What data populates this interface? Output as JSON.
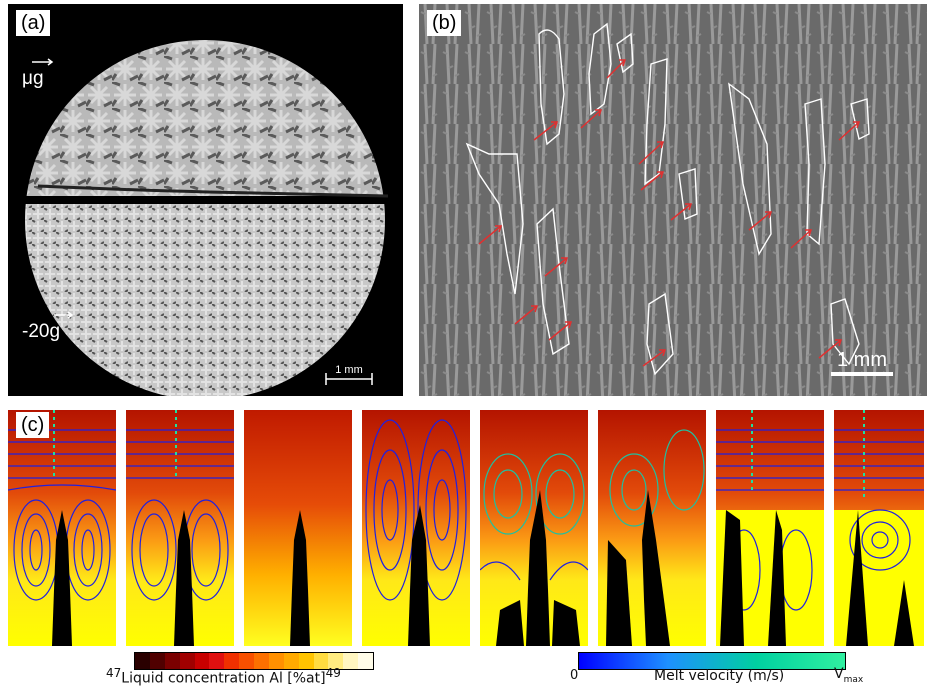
{
  "panel_a": {
    "label": "(a)",
    "gravity_top": "μg",
    "gravity_bottom": "-20g",
    "scale_text": "1 mm"
  },
  "panel_b": {
    "label": "(b)",
    "scale_text": "1 mm"
  },
  "panel_c": {
    "label": "(c)",
    "colorbar_concentration": {
      "min": "47",
      "max": "49",
      "title": "Liquid concentration Al  [%at]",
      "colors": [
        "#2a0000",
        "#500000",
        "#7a0000",
        "#a00000",
        "#c80000",
        "#e01010",
        "#f03000",
        "#f85000",
        "#fc7000",
        "#ff9000",
        "#ffaa00",
        "#ffc400",
        "#ffdc40",
        "#ffec80",
        "#fff6c0",
        "#fffce8"
      ]
    },
    "colorbar_velocity": {
      "min": "0",
      "title": "Melt velocity (m/s)",
      "max_symbol": "V",
      "max_subscript": "max",
      "colors": [
        "#0000ff",
        "#1e90ff",
        "#00d0a0",
        "#30f0a0"
      ]
    }
  }
}
